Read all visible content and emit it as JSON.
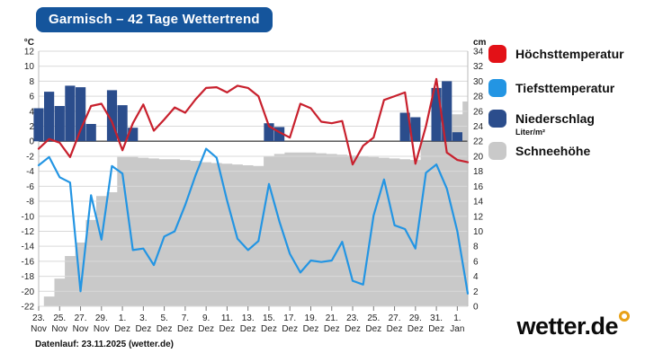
{
  "header": {
    "title": "Garmisch – 42 Tage Wettertrend"
  },
  "footer": {
    "datenlauf": "Datenlauf: 23.11.2025 (wetter.de)"
  },
  "logo": {
    "text": "wetter.de",
    "ring_color": "#e8a117"
  },
  "legend": {
    "items": [
      {
        "label": "Höchsttemperatur",
        "color": "#e31117",
        "sublabel": ""
      },
      {
        "label": "Tiefsttemperatur",
        "color": "#2395e3",
        "sublabel": ""
      },
      {
        "label": "Niederschlag",
        "color": "#2b4d8c",
        "sublabel": "Liter/m²"
      },
      {
        "label": "Schneehöhe",
        "color": "#c9c9c9",
        "sublabel": ""
      }
    ]
  },
  "chart_data": {
    "type": "line",
    "subtype": "combo: two temperature lines + precipitation bars + snow-depth step area",
    "days": 42,
    "start_date_label": "23. Nov",
    "end_tick_label": "1. Jan",
    "left_axis": {
      "label": "°C",
      "min": -22,
      "max": 12,
      "step": 2
    },
    "right_axis": {
      "label": "cm",
      "min": 0,
      "max": 34,
      "step": 2
    },
    "grid": {
      "color": "#d9d9d9",
      "zero_line_color": "#4a4a4a",
      "border_color": "#b9b9b9",
      "tick_color": "#777"
    },
    "x_tick_labels": [
      {
        "day": "23.",
        "month": "Nov"
      },
      {
        "day": "25.",
        "month": "Nov"
      },
      {
        "day": "27.",
        "month": "Nov"
      },
      {
        "day": "29.",
        "month": "Nov"
      },
      {
        "day": "1.",
        "month": "Dez"
      },
      {
        "day": "3.",
        "month": "Dez"
      },
      {
        "day": "5.",
        "month": "Dez"
      },
      {
        "day": "7.",
        "month": "Dez"
      },
      {
        "day": "9.",
        "month": "Dez"
      },
      {
        "day": "11.",
        "month": "Dez"
      },
      {
        "day": "13.",
        "month": "Dez"
      },
      {
        "day": "15.",
        "month": "Dez"
      },
      {
        "day": "17.",
        "month": "Dez"
      },
      {
        "day": "19.",
        "month": "Dez"
      },
      {
        "day": "21.",
        "month": "Dez"
      },
      {
        "day": "23.",
        "month": "Dez"
      },
      {
        "day": "25.",
        "month": "Dez"
      },
      {
        "day": "27.",
        "month": "Dez"
      },
      {
        "day": "29.",
        "month": "Dez"
      },
      {
        "day": "31.",
        "month": "Dez"
      },
      {
        "day": "1.",
        "month": "Jan"
      }
    ],
    "series": [
      {
        "name": "Schneehöhe",
        "type": "step-area",
        "axis": "right",
        "unit": "cm",
        "color": "#c9c9c9",
        "values": [
          0,
          1.3,
          3.7,
          6.7,
          8.5,
          11.5,
          14.7,
          15.2,
          19.9,
          19.9,
          19.8,
          19.7,
          19.6,
          19.6,
          19.5,
          19.4,
          19.2,
          19.1,
          19.0,
          18.9,
          18.8,
          18.7,
          20.0,
          20.3,
          20.5,
          20.5,
          20.5,
          20.4,
          20.3,
          20.2,
          20.1,
          20.0,
          19.9,
          19.8,
          19.7,
          19.6,
          19.5,
          21.9,
          22.0,
          22.0,
          25.6,
          27.3
        ]
      },
      {
        "name": "Niederschlag",
        "type": "bar",
        "axis": "left-above-zero",
        "unit": "Liter/m²",
        "color": "#2b4d8c",
        "values": [
          4.4,
          6.6,
          4.7,
          7.4,
          7.2,
          2.3,
          0,
          6.8,
          4.8,
          1.8,
          0,
          0,
          0,
          0,
          0,
          0,
          0,
          0,
          0,
          0,
          0,
          0,
          2.4,
          1.9,
          0,
          0,
          0,
          0,
          0,
          0,
          0,
          0,
          0,
          0,
          0,
          3.8,
          3.2,
          0,
          7.1,
          8.0,
          1.2,
          0
        ]
      },
      {
        "name": "Höchsttemperatur",
        "type": "line",
        "axis": "left",
        "unit": "°C",
        "color": "#c8202d",
        "values": [
          -1.0,
          0.3,
          -0.2,
          -2.1,
          1.5,
          4.7,
          5.0,
          2.6,
          -1.2,
          2.4,
          4.9,
          1.4,
          2.9,
          4.5,
          3.8,
          5.6,
          7.1,
          7.2,
          6.5,
          7.4,
          7.1,
          6.0,
          2.0,
          1.2,
          0.5,
          5.0,
          4.4,
          2.6,
          2.4,
          2.7,
          -3.1,
          -0.6,
          0.5,
          5.5,
          6.0,
          6.5,
          -3.0,
          2.0,
          8.3,
          -1.5,
          -2.5,
          -2.8
        ]
      },
      {
        "name": "Tiefsttemperatur",
        "type": "line",
        "axis": "left",
        "unit": "°C",
        "color": "#2395e3",
        "values": [
          -3.2,
          -2.1,
          -4.8,
          -5.5,
          -20.0,
          -7.2,
          -13.1,
          -3.3,
          -4.3,
          -14.5,
          -14.3,
          -16.5,
          -12.7,
          -12.0,
          -8.5,
          -4.5,
          -1.0,
          -2.2,
          -7.9,
          -13.0,
          -14.5,
          -13.3,
          -5.7,
          -10.7,
          -15.0,
          -17.5,
          -15.9,
          -16.1,
          -15.9,
          -13.4,
          -18.6,
          -19.1,
          -9.9,
          -5.1,
          -11.2,
          -11.7,
          -14.3,
          -4.2,
          -3.1,
          -6.3,
          -12.0,
          -20.3
        ]
      }
    ]
  }
}
